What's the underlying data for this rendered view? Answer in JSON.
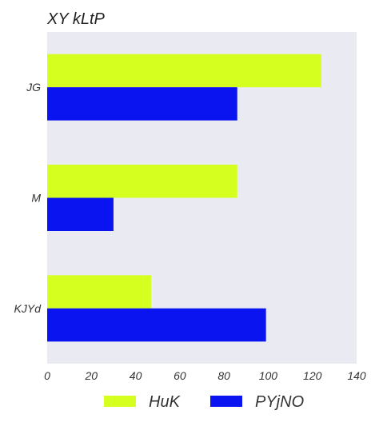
{
  "chart_data": {
    "type": "bar",
    "orientation": "horizontal",
    "title": "XY kLtP",
    "categories": [
      "JG",
      "M",
      "KJYd"
    ],
    "series": [
      {
        "name": "HuK",
        "values": [
          124,
          86,
          47
        ],
        "color": "#d4ff1f"
      },
      {
        "name": "PYjNO",
        "values": [
          86,
          30,
          99
        ],
        "color": "#0a14f0"
      }
    ],
    "xlim": [
      0,
      140
    ],
    "xticks": [
      0,
      20,
      40,
      60,
      80,
      100,
      120,
      140
    ],
    "xlabel": "",
    "ylabel": "",
    "grid": false,
    "background": "#eaeaf2",
    "legend_position": "bottom-center"
  }
}
